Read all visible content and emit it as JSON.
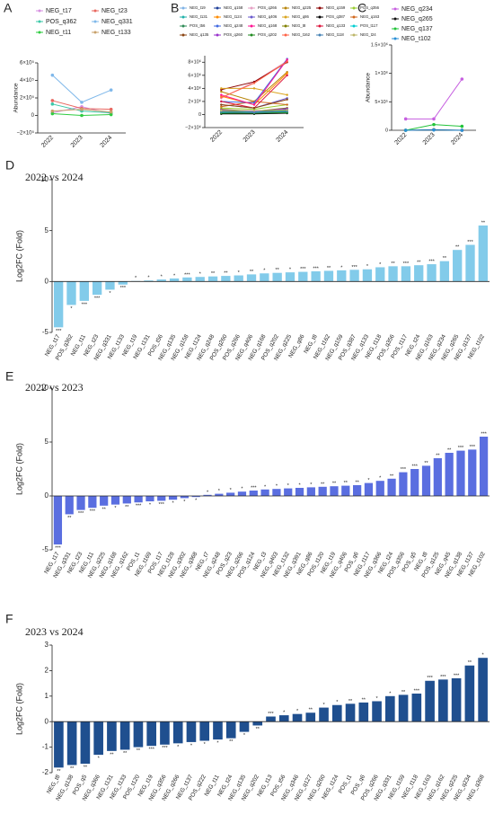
{
  "chart_data": [
    {
      "type": "line",
      "label": "A",
      "ylabel": "Abundance",
      "categories": [
        "2022",
        "2023",
        "2024"
      ],
      "ylim": [
        -200000,
        600000
      ],
      "yticks": [
        {
          "value": -200000,
          "label": "−2×10⁵"
        },
        0,
        {
          "value": 200000,
          "label": "2×10⁵"
        },
        {
          "value": 400000,
          "label": "4×10⁵"
        },
        {
          "value": 600000,
          "label": "6×10⁵"
        }
      ],
      "series": [
        {
          "name": "NEG_t17",
          "color": "#d68fe0",
          "values": [
            30000,
            100000,
            20000
          ]
        },
        {
          "name": "NEG_t23",
          "color": "#e8675f",
          "values": [
            170000,
            80000,
            70000
          ]
        },
        {
          "name": "POS_q362",
          "color": "#3cc8a8",
          "values": [
            130000,
            50000,
            30000
          ]
        },
        {
          "name": "NEG_q331",
          "color": "#7fb8ea",
          "values": [
            460000,
            150000,
            290000
          ]
        },
        {
          "name": "NEG_t11",
          "color": "#2ecc40",
          "values": [
            20000,
            0,
            10000
          ]
        },
        {
          "name": "NEG_t133",
          "color": "#c8a06a",
          "values": [
            50000,
            70000,
            40000
          ]
        }
      ]
    },
    {
      "type": "line",
      "label": "B",
      "categories": [
        "2022",
        "2023",
        "2024"
      ],
      "ylim": [
        -2000000,
        9000000
      ],
      "yticks": [
        {
          "value": -2000000,
          "label": "−2×10⁶"
        },
        0,
        {
          "value": 2000000,
          "label": "2×10⁶"
        },
        {
          "value": 4000000,
          "label": "4×10⁶"
        },
        {
          "value": 6000000,
          "label": "6×10⁶"
        },
        {
          "value": 8000000,
          "label": "8×10⁶"
        }
      ],
      "series": [
        {
          "name": "NEG_t19",
          "color": "#7fb3e6",
          "values": [
            200000,
            300000,
            500000
          ]
        },
        {
          "name": "NEG_q158",
          "color": "#1f3f99",
          "values": [
            500000,
            300000,
            800000
          ]
        },
        {
          "name": "POS_q266",
          "color": "#e6a0c4",
          "values": [
            2500000,
            5000000,
            8200000
          ]
        },
        {
          "name": "NEG_q225",
          "color": "#b8860b",
          "values": [
            3500000,
            2000000,
            6500000
          ]
        },
        {
          "name": "NEG_q159",
          "color": "#8b0000",
          "values": [
            3800000,
            5000000,
            8000000
          ]
        },
        {
          "name": "POS_q356",
          "color": "#9acd32",
          "values": [
            1000000,
            800000,
            1500000
          ]
        },
        {
          "name": "NEG_t131",
          "color": "#20b2aa",
          "values": [
            300000,
            200000,
            400000
          ]
        },
        {
          "name": "NEG_t124",
          "color": "#ff8c00",
          "values": [
            2800000,
            1500000,
            6300000
          ]
        },
        {
          "name": "NEG_q406",
          "color": "#6a5acd",
          "values": [
            1500000,
            1000000,
            2500000
          ]
        },
        {
          "name": "NEG_q86",
          "color": "#daa520",
          "values": [
            4000000,
            4000000,
            3000000
          ]
        },
        {
          "name": "POS_q387",
          "color": "#000000",
          "values": [
            100000,
            100000,
            200000
          ]
        },
        {
          "name": "NEG_q163",
          "color": "#d2691e",
          "values": [
            1200000,
            2000000,
            1500000
          ]
        },
        {
          "name": "POS_t56",
          "color": "#2e8b57",
          "values": [
            500000,
            500000,
            600000
          ]
        },
        {
          "name": "NEG_q248",
          "color": "#4169e1",
          "values": [
            2000000,
            1800000,
            8500000
          ]
        },
        {
          "name": "NEG_q168",
          "color": "#ff1493",
          "values": [
            3000000,
            1500000,
            8400000
          ]
        },
        {
          "name": "NEG_t8",
          "color": "#808000",
          "values": [
            800000,
            500000,
            1000000
          ]
        },
        {
          "name": "NEG_q133",
          "color": "#dc143c",
          "values": [
            2000000,
            1000000,
            6000000
          ]
        },
        {
          "name": "POS_t117",
          "color": "#00ced1",
          "values": [
            300000,
            400000,
            300000
          ]
        },
        {
          "name": "NEG_q135",
          "color": "#8b4513",
          "values": [
            1500000,
            1000000,
            2300000
          ]
        },
        {
          "name": "POS_q260",
          "color": "#9932cc",
          "values": [
            700000,
            500000,
            900000
          ]
        },
        {
          "name": "POS_q202",
          "color": "#228b22",
          "values": [
            200000,
            200000,
            300000
          ]
        },
        {
          "name": "NEG_t162",
          "color": "#ff6347",
          "values": [
            2600000,
            4800000,
            8100000
          ]
        },
        {
          "name": "NEG_t118",
          "color": "#4682b4",
          "values": [
            400000,
            300000,
            500000
          ]
        },
        {
          "name": "NEG_t24",
          "color": "#bdb76b",
          "values": [
            600000,
            600000,
            700000
          ]
        }
      ]
    },
    {
      "type": "line",
      "label": "C",
      "ylabel": "Abundance",
      "categories": [
        "2022",
        "2023",
        "2024"
      ],
      "ylim": [
        0,
        1500000
      ],
      "yticks": [
        0,
        {
          "value": 500000,
          "label": "5×10⁵"
        },
        {
          "value": 1000000,
          "label": "1×10⁶"
        },
        {
          "value": 1500000,
          "label": "1.5×10⁶"
        }
      ],
      "series": [
        {
          "name": "NEG_q234",
          "color": "#c65fe0",
          "values": [
            200000,
            200000,
            900000
          ]
        },
        {
          "name": "NEG_q265",
          "color": "#111111",
          "values": [
            0,
            10000,
            0
          ]
        },
        {
          "name": "NEG_q137",
          "color": "#22c33a",
          "values": [
            0,
            100000,
            70000
          ]
        },
        {
          "name": "NEG_t102",
          "color": "#2a8fd6",
          "values": [
            0,
            5000,
            0
          ]
        }
      ]
    },
    {
      "type": "bar",
      "label": "D",
      "title": "2022 vs 2024",
      "ylabel": "Log2FC (Fold)",
      "color": "#82cbea",
      "ylim": [
        -5,
        10
      ],
      "yticks": [
        -5,
        0,
        5,
        10
      ],
      "categories": [
        "NEG_t17",
        "POS_q362",
        "NEG_t11",
        "NEG_t23",
        "NEG_q331",
        "NEG_t133",
        "NEG_t19",
        "NEG_t131",
        "POS_t56",
        "NEG_q135",
        "NEG_q158",
        "NEG_t124",
        "NEG_q248",
        "POS_q260",
        "POS_q266",
        "NEG_q406",
        "NEG_q168",
        "POS_q202",
        "NEG_q225",
        "NEG_q86",
        "NEG_t8",
        "NEG_t162",
        "NEG_q159",
        "POS_q387",
        "NEG_q133",
        "NEG_t118",
        "POS_q356",
        "POS_t117",
        "NEG_t24",
        "NEG_q163",
        "NEG_q234",
        "NEG_q265",
        "NEG_q137",
        "NEG_t102"
      ],
      "values": [
        -4.5,
        -2.3,
        -1.9,
        -1.3,
        -0.8,
        -0.3,
        0.05,
        0.1,
        0.2,
        0.3,
        0.4,
        0.45,
        0.5,
        0.55,
        0.6,
        0.7,
        0.8,
        0.85,
        0.9,
        0.95,
        1.0,
        1.05,
        1.1,
        1.15,
        1.2,
        1.4,
        1.5,
        1.5,
        1.6,
        1.7,
        2.0,
        3.1,
        3.6,
        5.5
      ],
      "stars": [
        "***",
        "*",
        "***",
        "***",
        "*",
        "***",
        "*",
        "*",
        "*",
        "*",
        "***",
        "*",
        "**",
        "**",
        "*",
        "**",
        "*",
        "**",
        "*",
        "***",
        "***",
        "**",
        "*",
        "***",
        "*",
        "*",
        "**",
        "***",
        "**",
        "***",
        "**",
        "**",
        "***",
        "**"
      ]
    },
    {
      "type": "bar",
      "label": "E",
      "title": "2022 vs 2023",
      "ylabel": "Log2FC (Fold)",
      "color": "#5a6ee0",
      "ylim": [
        -5,
        10
      ],
      "yticks": [
        -5,
        0,
        5,
        10
      ],
      "categories": [
        "NEG_t17",
        "NEG_q331",
        "NEG_t23",
        "NEG_t11",
        "NEG_q225",
        "NEG_q168",
        "NEG_q162",
        "POS_t1",
        "NEG_t169",
        "POS_t17",
        "NEG_t128",
        "NEG_q302",
        "NEG_q368",
        "NEG_t7",
        "NEG_q248",
        "POS_q23",
        "NEG_q266",
        "POS_q124",
        "NEG_t3",
        "NEG_q403",
        "NEG_t132",
        "NEG_q391",
        "NEG_q86",
        "POS_t120",
        "NEG_t19",
        "NEG_q406",
        "POS_q6",
        "NEG_t117",
        "NEG_q366",
        "NEG_t24",
        "POS_q356",
        "POS_q5",
        "NEG_t8",
        "POS_q125",
        "NEG_q45",
        "NEG_q138",
        "NEG_t137",
        "NEG_t102"
      ],
      "values": [
        -4.5,
        -1.7,
        -1.3,
        -1.1,
        -0.9,
        -0.8,
        -0.7,
        -0.6,
        -0.5,
        -0.45,
        -0.35,
        -0.2,
        -0.1,
        0.1,
        0.2,
        0.3,
        0.4,
        0.5,
        0.6,
        0.65,
        0.7,
        0.75,
        0.8,
        0.85,
        0.9,
        0.95,
        1.0,
        1.2,
        1.4,
        1.6,
        2.2,
        2.5,
        2.8,
        3.5,
        4.0,
        4.2,
        4.3,
        5.5
      ],
      "stars": [
        "***",
        "**",
        "***",
        "***",
        "**",
        "*",
        "**",
        "***",
        "*",
        "***",
        "*",
        "*",
        "*",
        "*",
        "*",
        "*",
        "*",
        "***",
        "*",
        "*",
        "*",
        "*",
        "*",
        "**",
        "**",
        "**",
        "**",
        "*",
        "*",
        "**",
        "***",
        "***",
        "**",
        "**",
        "**",
        "***",
        "***",
        "***"
      ]
    },
    {
      "type": "bar",
      "label": "F",
      "title": "2023 vs 2024",
      "ylabel": "Log2FC (Fold)",
      "color": "#1f4f8f",
      "ylim": [
        -2,
        3
      ],
      "yticks": [
        -2,
        -1,
        0,
        1,
        2,
        3
      ],
      "categories": [
        "NEG_t8",
        "NEG_q138",
        "POS_q5",
        "NEG_q366",
        "NEG_t131",
        "NEG_t133",
        "POS_t120",
        "NEG_t19",
        "NEG_q356",
        "NEG_q266",
        "NEG_t137",
        "POS_q222",
        "NEG_t11",
        "NEG_t24",
        "NEG_q135",
        "NEG_q202",
        "NEG_t13",
        "POS_t56",
        "NEG_q346",
        "NEG_q127",
        "NEG_q260",
        "NEG_t124",
        "POS_t1",
        "POS_q6",
        "POS_q266",
        "NEG_q331",
        "NEG_t159",
        "NEG_t118",
        "NEG_t163",
        "NEG_q162",
        "NEG_q225",
        "NEG_q234",
        "NEG_q368"
      ],
      "values": [
        -1.8,
        -1.7,
        -1.65,
        -1.3,
        -1.15,
        -1.1,
        -1.0,
        -0.95,
        -0.9,
        -0.85,
        -0.8,
        -0.75,
        -0.7,
        -0.65,
        -0.4,
        -0.15,
        0.2,
        0.25,
        0.3,
        0.35,
        0.55,
        0.65,
        0.7,
        0.75,
        0.8,
        1.0,
        1.05,
        1.1,
        1.6,
        1.65,
        1.7,
        2.2,
        2.5
      ],
      "stars": [
        "**",
        "**",
        "**",
        "*",
        "**",
        "**",
        "**",
        "***",
        "***",
        "*",
        "*",
        "*",
        "*",
        "**",
        "*",
        "**",
        "***",
        "*",
        "*",
        "**",
        "*",
        "*",
        "**",
        "**",
        "*",
        "*",
        "**",
        "***",
        "***",
        "***",
        "***",
        "**",
        "*"
      ]
    }
  ]
}
